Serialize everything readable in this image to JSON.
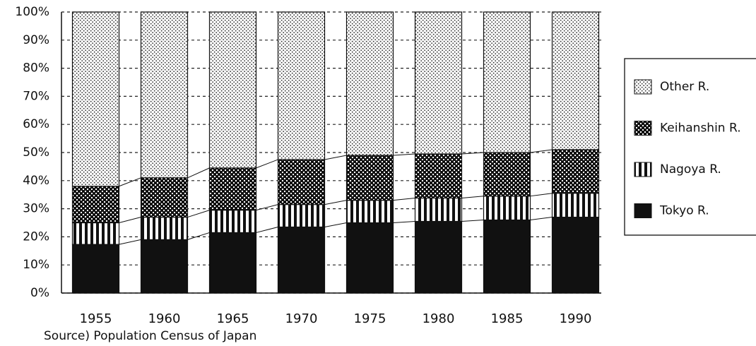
{
  "chart_data": {
    "type": "stacked_bar",
    "categories": [
      "1955",
      "1960",
      "1965",
      "1970",
      "1975",
      "1980",
      "1985",
      "1990"
    ],
    "series": [
      {
        "name": "Tokyo R.",
        "color": "#111111",
        "pattern": "solid",
        "values": [
          17.3,
          19,
          21.5,
          23.5,
          25,
          25.5,
          26,
          27
        ]
      },
      {
        "name": "Nagoya R.",
        "color": "#111111",
        "pattern": "vertical-stripes",
        "values": [
          7.7,
          8,
          8,
          8,
          8,
          8.3,
          8.5,
          8.5
        ]
      },
      {
        "name": "Keihanshin R.",
        "color": "#111111",
        "pattern": "checker",
        "values": [
          13,
          14,
          15,
          16,
          16,
          15.7,
          15.5,
          15.5
        ]
      },
      {
        "name": "Other R.",
        "color": "#111111",
        "pattern": "dots",
        "values": [
          62,
          59,
          55.5,
          52.5,
          51,
          50.5,
          50,
          49
        ]
      }
    ],
    "ylim": [
      0,
      100
    ],
    "yticks": [
      {
        "value": 0,
        "label": "0%"
      },
      {
        "value": 10,
        "label": "10%"
      },
      {
        "value": 20,
        "label": "20%"
      },
      {
        "value": 30,
        "label": "30%"
      },
      {
        "value": 40,
        "label": "40%"
      },
      {
        "value": 50,
        "label": "50%"
      },
      {
        "value": 60,
        "label": "60%"
      },
      {
        "value": 70,
        "label": "70%"
      },
      {
        "value": 80,
        "label": "80%"
      },
      {
        "value": 90,
        "label": "90%"
      },
      {
        "value": 100,
        "label": "100%"
      }
    ],
    "grid": true,
    "legend": "right",
    "source": "Source) Population Census of Japan"
  }
}
